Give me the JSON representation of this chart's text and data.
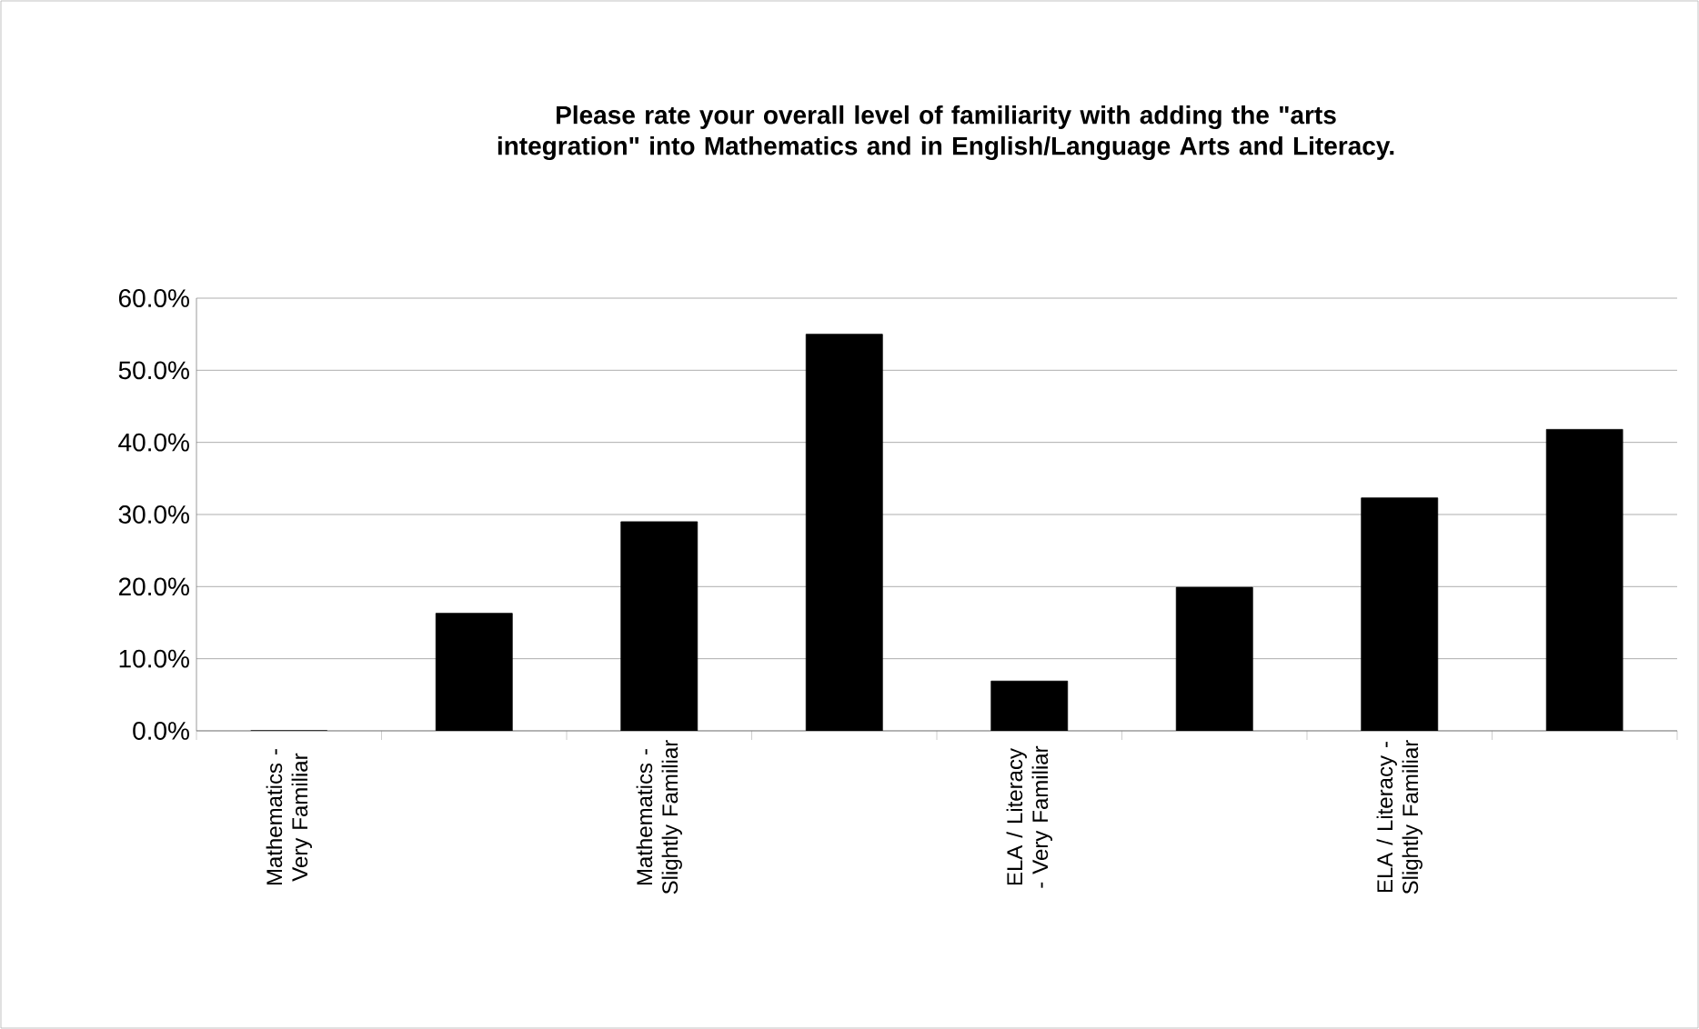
{
  "chart_data": {
    "type": "bar",
    "title": "Please rate your overall level of familiarity with adding the \"arts integration\" into Mathematics and in English/Language Arts and Literacy.",
    "categories": [
      "Mathematics - Very Familiar",
      null,
      "Mathematics - Slightly Familiar",
      null,
      "ELA / Literacy - Very Familiar",
      null,
      "ELA / Literacy - Slightly Familiar",
      null
    ],
    "values": [
      0,
      16.3,
      29,
      55,
      6.9,
      19.9,
      32.3,
      41.8
    ],
    "color": "#000000",
    "ylim": [
      0,
      60
    ],
    "yticks": [
      {
        "value": 0,
        "label": "0.0%"
      },
      {
        "value": 10,
        "label": "10.0%"
      },
      {
        "value": 20,
        "label": "20.0%"
      },
      {
        "value": 30,
        "label": "30.0%"
      },
      {
        "value": 40,
        "label": "40.0%"
      },
      {
        "value": 50,
        "label": "50.0%"
      },
      {
        "value": 60,
        "label": "60.0%"
      }
    ],
    "grid": "y"
  }
}
